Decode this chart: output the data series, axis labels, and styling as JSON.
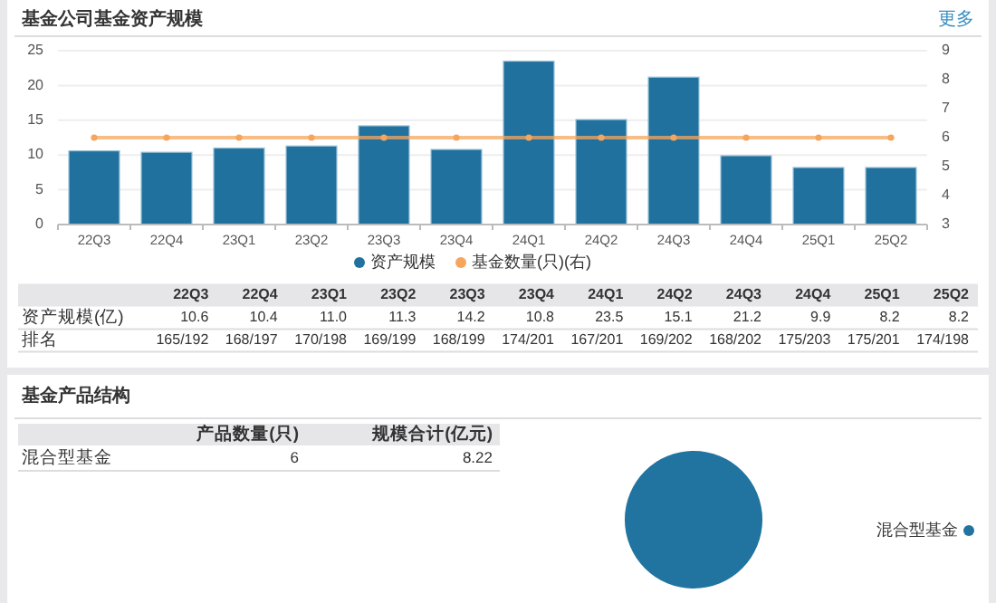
{
  "chart_data": [
    {
      "type": "bar",
      "title": "基金公司基金资产规模",
      "categories": [
        "22Q3",
        "22Q4",
        "23Q1",
        "23Q2",
        "23Q3",
        "23Q4",
        "24Q1",
        "24Q2",
        "24Q3",
        "24Q4",
        "25Q1",
        "25Q2"
      ],
      "series": [
        {
          "name": "资产规模",
          "color": "#21719f",
          "values": [
            10.6,
            10.4,
            11.0,
            11.3,
            14.2,
            10.8,
            23.5,
            15.1,
            21.2,
            9.9,
            8.2,
            8.2
          ]
        },
        {
          "name": "基金数量(只)(右)",
          "type": "line",
          "axis": "y2",
          "color": "#f5a55c",
          "values": [
            6,
            6,
            6,
            6,
            6,
            6,
            6,
            6,
            6,
            6,
            6,
            6
          ]
        }
      ],
      "ylim": [
        0,
        25
      ],
      "yticks": [
        0,
        5,
        10,
        15,
        20,
        25
      ],
      "y2lim": [
        3,
        9
      ],
      "y2ticks": [
        3,
        4,
        5,
        6,
        7,
        8,
        9
      ],
      "grid": "y",
      "legend": "bottom",
      "marker": "circle",
      "annotations": [
        "更多",
        "资产规模(亿)",
        "10.6",
        "10.4",
        "11.0",
        "11.3",
        "14.2",
        "10.8",
        "23.5",
        "15.1",
        "21.2",
        "9.9",
        "8.2",
        "8.2",
        "排名",
        "165/192",
        "168/197",
        "170/198",
        "169/199",
        "168/199",
        "174/201",
        "167/201",
        "169/202",
        "168/202",
        "175/203",
        "175/201",
        "174/198"
      ]
    },
    {
      "type": "other",
      "title": "基金产品结构",
      "annotations": [
        "产品数量(只)",
        "规模合计(亿元)",
        "混合型基金",
        "6",
        "8.22"
      ]
    },
    {
      "type": "pie",
      "categories": [
        "混合型基金"
      ],
      "values": [
        100
      ],
      "colors": [
        "#2274a0"
      ],
      "legend": "right"
    }
  ]
}
